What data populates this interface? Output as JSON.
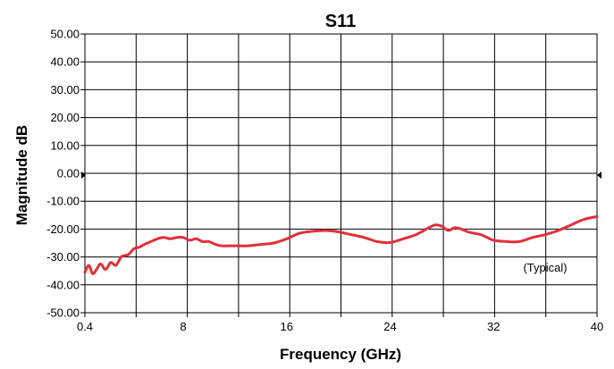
{
  "chart_data": {
    "type": "line",
    "title": "S11",
    "xlabel": "Frequency (GHz)",
    "ylabel": "Magnitude dB",
    "annotation": "(Typical)",
    "xlim": [
      0.4,
      40
    ],
    "ylim": [
      -50,
      50
    ],
    "x_ticks": [
      0.4,
      8,
      16,
      24,
      32,
      40
    ],
    "x_tick_labels": [
      "0.4",
      "8",
      "16",
      "24",
      "32",
      "40"
    ],
    "y_ticks": [
      50,
      40,
      30,
      20,
      10,
      0,
      -10,
      -20,
      -30,
      -40,
      -50
    ],
    "y_tick_labels": [
      "50.00",
      "40.00",
      "30.00",
      "20.00",
      "10.00",
      "0.00",
      "-10.00",
      "-20.00",
      "-30.00",
      "-40.00",
      "-50.00"
    ],
    "grid": true,
    "line_color": "#e0303a",
    "series": [
      {
        "x": [
          0.4,
          0.7,
          1.0,
          1.3,
          1.6,
          2.0,
          2.4,
          2.8,
          3.2,
          3.5,
          3.8,
          4.2,
          4.6,
          5.0,
          5.5,
          6.0,
          6.5,
          7.0,
          7.5,
          8.0,
          8.5,
          9.0,
          9.5,
          10.0,
          10.5,
          11.0,
          12.0,
          13.0,
          14.0,
          15.0,
          16.0,
          17.0,
          18.0,
          19.0,
          20.0,
          21.0,
          22.0,
          23.0,
          24.0,
          25.0,
          26.0,
          27.0,
          27.5,
          28.0,
          28.5,
          29.0,
          29.5,
          30.0,
          30.5,
          31.0,
          31.5,
          32.0,
          33.0,
          34.0,
          35.0,
          36.0,
          37.0,
          38.0,
          39.0,
          40.0
        ],
        "values": [
          -35.5,
          -33.0,
          -36.0,
          -34.5,
          -32.5,
          -34.5,
          -32.0,
          -33.0,
          -30.0,
          -29.5,
          -29.0,
          -27.0,
          -26.5,
          -25.5,
          -24.5,
          -23.5,
          -23.0,
          -23.5,
          -23.0,
          -23.0,
          -24.0,
          -23.5,
          -24.5,
          -24.5,
          -25.5,
          -26.0,
          -26.0,
          -26.0,
          -25.5,
          -25.0,
          -23.5,
          -21.5,
          -20.8,
          -20.5,
          -21.0,
          -22.0,
          -23.0,
          -24.5,
          -24.8,
          -23.5,
          -22.0,
          -19.5,
          -18.5,
          -19.0,
          -20.5,
          -19.5,
          -20.0,
          -21.0,
          -21.5,
          -22.0,
          -23.0,
          -24.0,
          -24.5,
          -24.5,
          -23.0,
          -22.0,
          -20.5,
          -18.5,
          -16.5,
          -15.5
        ]
      }
    ]
  }
}
